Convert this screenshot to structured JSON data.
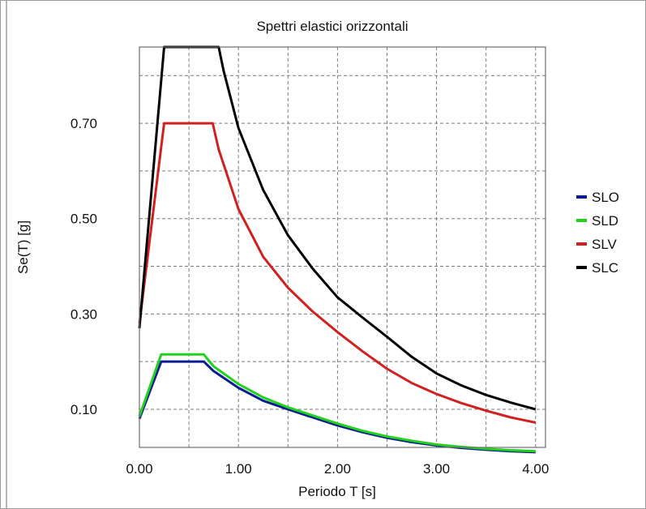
{
  "chart_data": {
    "type": "line",
    "title": "Spettri elastici orizzontali",
    "xlabel": "Periodo T [s]",
    "ylabel": "Se(T) [g]",
    "xlim": [
      0,
      4.1
    ],
    "ylim": [
      0.02,
      0.86
    ],
    "xticks": [
      0,
      1,
      2,
      3,
      4
    ],
    "xtick_labels": [
      "0.00",
      "1.00",
      "2.00",
      "3.00",
      "4.00"
    ],
    "yticks": [
      0.1,
      0.3,
      0.5,
      0.7
    ],
    "ytick_labels": [
      "0.10",
      "0.30",
      "0.50",
      "0.70"
    ],
    "grid": true,
    "legend": "right",
    "series": [
      {
        "name": "SLO",
        "color": "#0a1f8f",
        "points": [
          [
            0,
            0.08
          ],
          [
            0.22,
            0.2
          ],
          [
            0.65,
            0.2
          ],
          [
            0.75,
            0.18
          ],
          [
            1.0,
            0.145
          ],
          [
            1.25,
            0.118
          ],
          [
            1.5,
            0.1
          ],
          [
            1.75,
            0.083
          ],
          [
            2.0,
            0.066
          ],
          [
            2.25,
            0.052
          ],
          [
            2.5,
            0.04
          ],
          [
            2.75,
            0.031
          ],
          [
            3.0,
            0.024
          ],
          [
            3.25,
            0.019
          ],
          [
            3.5,
            0.015
          ],
          [
            3.75,
            0.012
          ],
          [
            4.0,
            0.01
          ]
        ]
      },
      {
        "name": "SLD",
        "color": "#22d11e",
        "points": [
          [
            0,
            0.085
          ],
          [
            0.22,
            0.215
          ],
          [
            0.65,
            0.215
          ],
          [
            0.75,
            0.19
          ],
          [
            1.0,
            0.153
          ],
          [
            1.25,
            0.125
          ],
          [
            1.5,
            0.104
          ],
          [
            1.75,
            0.087
          ],
          [
            2.0,
            0.07
          ],
          [
            2.25,
            0.055
          ],
          [
            2.5,
            0.043
          ],
          [
            2.75,
            0.034
          ],
          [
            3.0,
            0.026
          ],
          [
            3.25,
            0.021
          ],
          [
            3.5,
            0.017
          ],
          [
            3.75,
            0.014
          ],
          [
            4.0,
            0.012
          ]
        ]
      },
      {
        "name": "SLV",
        "color": "#d02020",
        "points": [
          [
            0,
            0.28
          ],
          [
            0.25,
            0.7
          ],
          [
            0.74,
            0.7
          ],
          [
            0.8,
            0.645
          ],
          [
            1.0,
            0.52
          ],
          [
            1.25,
            0.42
          ],
          [
            1.5,
            0.355
          ],
          [
            1.75,
            0.305
          ],
          [
            2.0,
            0.262
          ],
          [
            2.25,
            0.222
          ],
          [
            2.5,
            0.185
          ],
          [
            2.75,
            0.155
          ],
          [
            3.0,
            0.132
          ],
          [
            3.25,
            0.113
          ],
          [
            3.5,
            0.097
          ],
          [
            3.75,
            0.083
          ],
          [
            4.0,
            0.072
          ]
        ]
      },
      {
        "name": "SLC",
        "color": "#000000",
        "points": [
          [
            0,
            0.27
          ],
          [
            0.25,
            0.86
          ],
          [
            0.8,
            0.86
          ],
          [
            0.85,
            0.81
          ],
          [
            1.0,
            0.69
          ],
          [
            1.25,
            0.56
          ],
          [
            1.5,
            0.465
          ],
          [
            1.75,
            0.395
          ],
          [
            2.0,
            0.335
          ],
          [
            2.25,
            0.293
          ],
          [
            2.5,
            0.252
          ],
          [
            2.75,
            0.21
          ],
          [
            3.0,
            0.175
          ],
          [
            3.25,
            0.15
          ],
          [
            3.5,
            0.13
          ],
          [
            3.75,
            0.114
          ],
          [
            4.0,
            0.1
          ]
        ]
      }
    ]
  }
}
